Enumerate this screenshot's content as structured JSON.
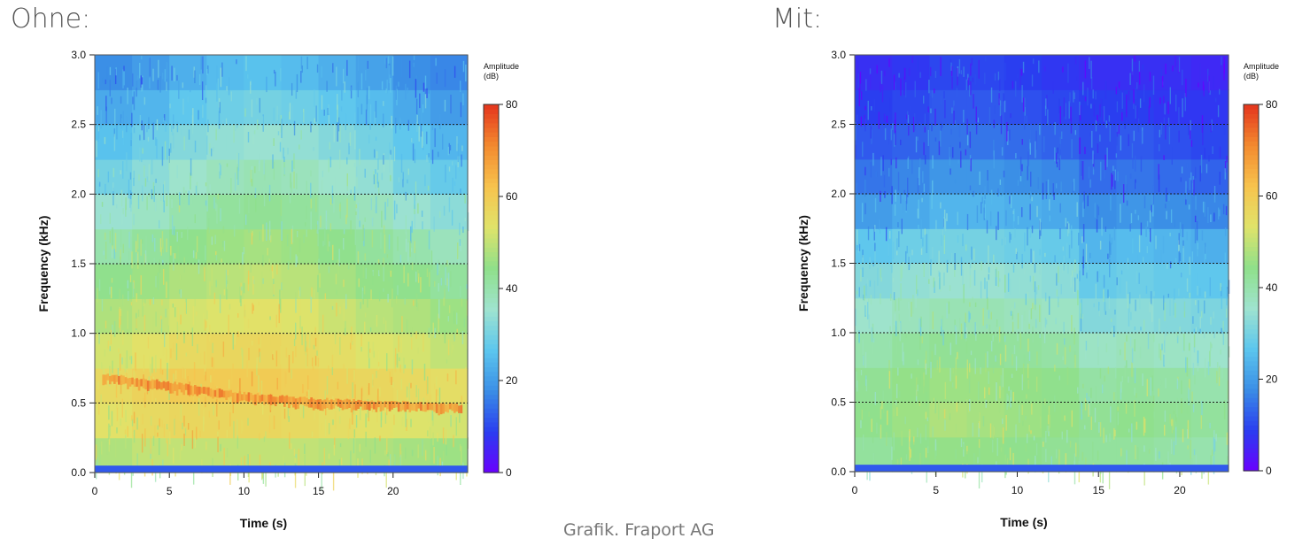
{
  "headings": {
    "left": "Ohne:",
    "right": "Mit:"
  },
  "caption": "Grafik. Fraport AG",
  "colormap": [
    "#6a00ff",
    "#2a3df0",
    "#3a8ee6",
    "#5cc6ee",
    "#9fe3cf",
    "#8fe08a",
    "#e0e36a",
    "#f7c34d",
    "#f38a2f",
    "#e4351d"
  ],
  "chart_data": [
    {
      "type": "heatmap",
      "heading": "Ohne:",
      "xlabel": "Time (s)",
      "ylabel": "Frequency (kHz)",
      "xlim": [
        0,
        25
      ],
      "ylim": [
        0,
        3
      ],
      "x_ticks": [
        0,
        5,
        10,
        15,
        20
      ],
      "y_ticks": [
        "0.0",
        "0.5",
        "1.0",
        "1.5",
        "2.0",
        "2.5",
        "3.0"
      ],
      "gridlines_y": [
        0.5,
        1.0,
        1.5,
        2.0,
        2.5
      ],
      "colorbar": {
        "title": "Amplitude",
        "unit": "(dB)",
        "range": [
          0,
          80
        ],
        "ticks": [
          0,
          20,
          40,
          60,
          80
        ]
      },
      "frequency_bins_khz": [
        0.0,
        0.25,
        0.5,
        0.75,
        1.0,
        1.25,
        1.5,
        1.75,
        2.0,
        2.25,
        2.5,
        2.75
      ],
      "time_bins_s": [
        0,
        2.5,
        5,
        7.5,
        10,
        12.5,
        15,
        17.5,
        20,
        22.5
      ],
      "amplitude_db": [
        [
          48,
          50,
          50,
          50,
          50,
          50,
          49,
          48,
          47,
          46
        ],
        [
          54,
          56,
          57,
          57,
          57,
          56,
          55,
          54,
          53,
          52
        ],
        [
          56,
          58,
          60,
          60,
          60,
          59,
          58,
          57,
          56,
          55
        ],
        [
          52,
          54,
          56,
          57,
          57,
          56,
          55,
          53,
          52,
          50
        ],
        [
          48,
          50,
          52,
          53,
          54,
          53,
          51,
          49,
          48,
          46
        ],
        [
          44,
          46,
          48,
          49,
          50,
          49,
          47,
          45,
          44,
          42
        ],
        [
          40,
          42,
          44,
          46,
          47,
          46,
          44,
          42,
          40,
          38
        ],
        [
          35,
          37,
          40,
          42,
          43,
          42,
          40,
          38,
          35,
          33
        ],
        [
          30,
          33,
          36,
          38,
          39,
          38,
          36,
          34,
          30,
          28
        ],
        [
          26,
          29,
          32,
          34,
          35,
          34,
          32,
          30,
          27,
          24
        ],
        [
          22,
          24,
          27,
          29,
          30,
          29,
          27,
          25,
          22,
          20
        ],
        [
          18,
          20,
          23,
          25,
          26,
          25,
          23,
          21,
          18,
          17
        ]
      ],
      "harmonic_band": {
        "time_s": [
          0.5,
          5,
          10,
          15,
          20,
          24.5
        ],
        "frequency_khz": [
          0.68,
          0.62,
          0.54,
          0.5,
          0.48,
          0.46
        ],
        "amplitude_db": 70
      },
      "floor_band": {
        "frequency_khz": [
          0,
          0.05
        ],
        "amplitude_db": 12
      }
    },
    {
      "type": "heatmap",
      "heading": "Mit:",
      "xlabel": "Time (s)",
      "ylabel": "Frequency (kHz)",
      "xlim": [
        0,
        23
      ],
      "ylim": [
        0,
        3
      ],
      "x_ticks": [
        0,
        5,
        10,
        15,
        20
      ],
      "y_ticks": [
        "0.0",
        "0.5",
        "1.0",
        "1.5",
        "2.0",
        "2.5",
        "3.0"
      ],
      "gridlines_y": [
        0.5,
        1.0,
        1.5,
        2.0,
        2.5
      ],
      "colorbar": {
        "title": "Amplitude",
        "unit": "(dB)",
        "range": [
          0,
          80
        ],
        "ticks": [
          0,
          20,
          40,
          60,
          80
        ]
      },
      "frequency_bins_khz": [
        0.0,
        0.25,
        0.5,
        0.75,
        1.0,
        1.25,
        1.5,
        1.75,
        2.0,
        2.25,
        2.5,
        2.75
      ],
      "time_bins_s": [
        0,
        2.3,
        4.6,
        6.9,
        9.2,
        11.5,
        13.8,
        16.1,
        18.4,
        20.7
      ],
      "amplitude_db": [
        [
          42,
          44,
          45,
          45,
          44,
          43,
          42,
          42,
          41,
          40
        ],
        [
          44,
          46,
          48,
          47,
          46,
          45,
          43,
          44,
          43,
          42
        ],
        [
          43,
          45,
          46,
          46,
          45,
          44,
          41,
          42,
          41,
          40
        ],
        [
          40,
          42,
          43,
          43,
          42,
          41,
          37,
          38,
          37,
          36
        ],
        [
          36,
          38,
          39,
          39,
          38,
          37,
          32,
          33,
          32,
          31
        ],
        [
          32,
          34,
          35,
          35,
          34,
          33,
          28,
          29,
          28,
          27
        ],
        [
          27,
          29,
          30,
          30,
          29,
          28,
          24,
          25,
          24,
          23
        ],
        [
          20,
          22,
          24,
          24,
          23,
          22,
          18,
          19,
          18,
          17
        ],
        [
          15,
          17,
          19,
          19,
          18,
          17,
          14,
          15,
          14,
          13
        ],
        [
          12,
          13,
          15,
          15,
          14,
          13,
          11,
          12,
          11,
          10
        ],
        [
          9,
          10,
          12,
          12,
          11,
          10,
          9,
          9,
          8,
          8
        ],
        [
          7,
          8,
          10,
          10,
          9,
          8,
          7,
          7,
          7,
          6
        ]
      ],
      "floor_band": {
        "frequency_khz": [
          0,
          0.05
        ],
        "amplitude_db": 12
      }
    }
  ]
}
